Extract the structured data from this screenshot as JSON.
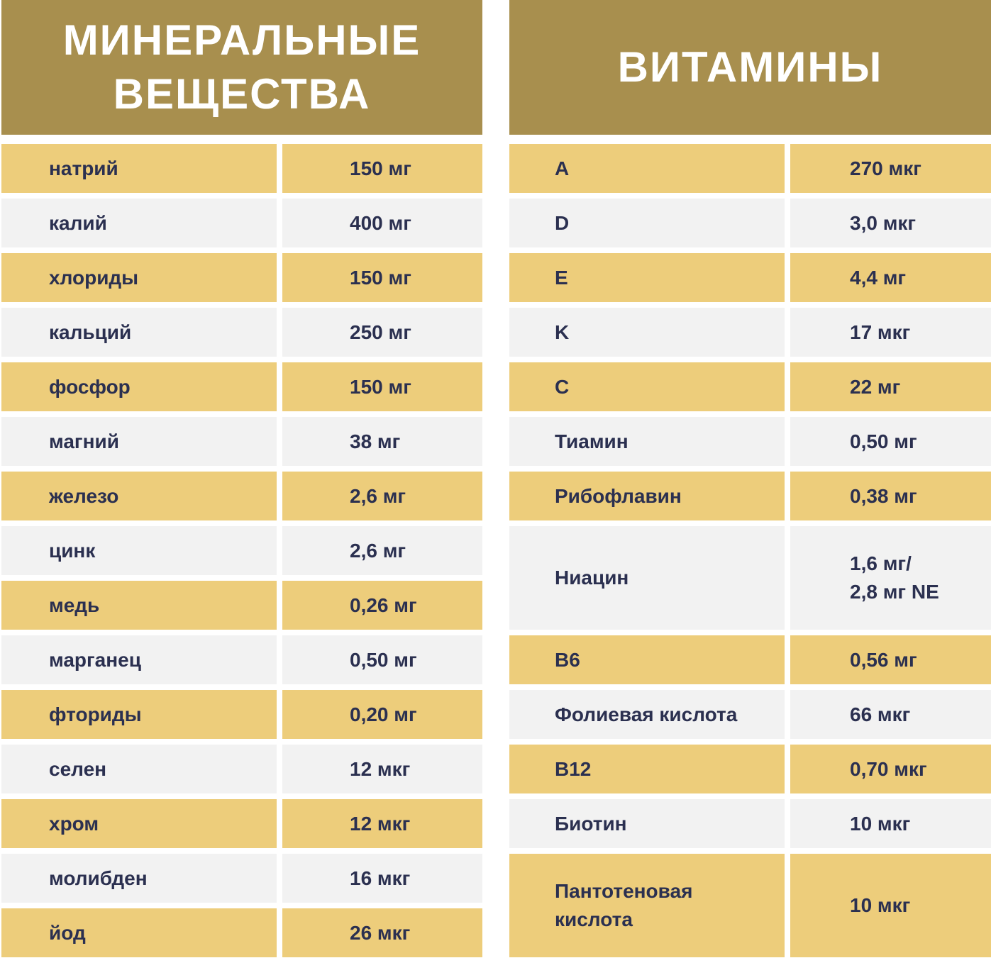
{
  "minerals": {
    "title": "МИНЕРАЛЬНЫЕ\nВЕЩЕСТВА",
    "rows": [
      {
        "name": "натрий",
        "value": "150 мг"
      },
      {
        "name": "калий",
        "value": "400 мг"
      },
      {
        "name": "хлориды",
        "value": "150 мг"
      },
      {
        "name": "кальций",
        "value": "250 мг"
      },
      {
        "name": "фосфор",
        "value": "150 мг"
      },
      {
        "name": "магний",
        "value": "38 мг"
      },
      {
        "name": "железо",
        "value": "2,6 мг"
      },
      {
        "name": "цинк",
        "value": "2,6 мг"
      },
      {
        "name": "медь",
        "value": "0,26 мг"
      },
      {
        "name": "марганец",
        "value": "0,50 мг"
      },
      {
        "name": "фториды",
        "value": "0,20 мг"
      },
      {
        "name": "селен",
        "value": "12 мкг"
      },
      {
        "name": "хром",
        "value": "12 мкг"
      },
      {
        "name": "молибден",
        "value": "16 мкг"
      },
      {
        "name": "йод",
        "value": "26 мкг"
      }
    ]
  },
  "vitamins": {
    "title": "ВИТАМИНЫ",
    "rows": [
      {
        "name": "A",
        "value": "270 мкг"
      },
      {
        "name": "D",
        "value": "3,0 мкг"
      },
      {
        "name": "E",
        "value": "4,4 мг"
      },
      {
        "name": "K",
        "value": "17 мкг"
      },
      {
        "name": "C",
        "value": "22 мг"
      },
      {
        "name": "Тиамин",
        "value": "0,50 мг"
      },
      {
        "name": "Рибофлавин",
        "value": "0,38 мг"
      },
      {
        "name": "Ниацин",
        "value": "1,6 мг/\n2,8 мг NE"
      },
      {
        "name": "B6",
        "value": "0,56 мг"
      },
      {
        "name": "Фолиевая кислота",
        "value": "66 мкг"
      },
      {
        "name": "B12",
        "value": "0,70 мкг"
      },
      {
        "name": "Биотин",
        "value": "10 мкг"
      },
      {
        "name": "Пантотеновая\nкислота",
        "value": "10 мкг"
      }
    ]
  },
  "colors": {
    "header": "#A88F4E",
    "row_highlight": "#EDCD7B",
    "row_plain": "#F2F2F2",
    "text": "#2B3050"
  }
}
